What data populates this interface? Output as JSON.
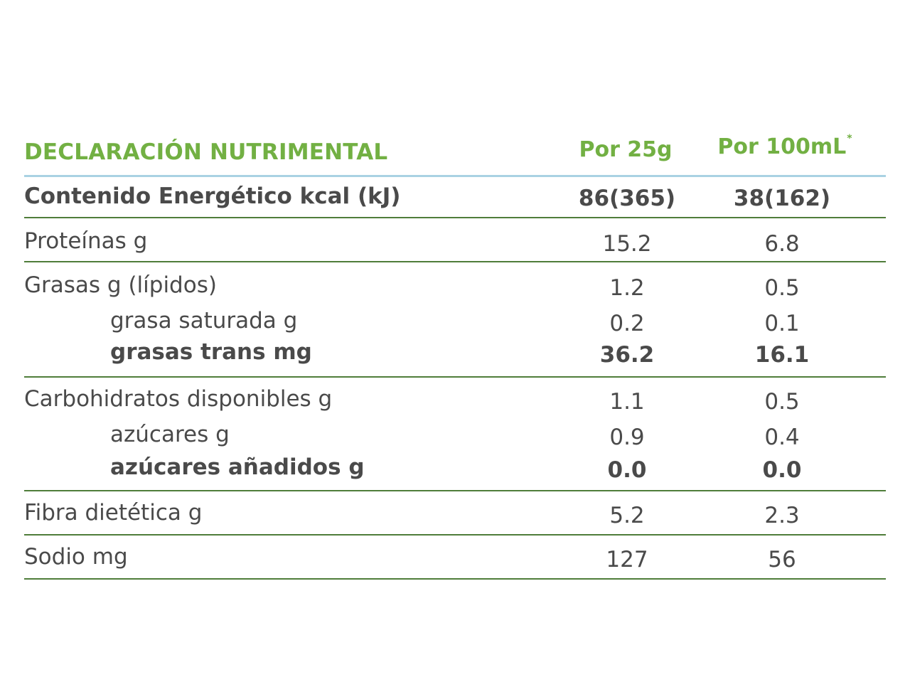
{
  "header": {
    "title": "DECLARACIÓN NUTRIMENTAL",
    "col1": "Por 25g",
    "col2": "Por 100mL",
    "col2_mark": "*"
  },
  "rows": {
    "energy": {
      "label": "Contenido Energético kcal (kJ)",
      "v1": "86(365)",
      "v2": "38(162)"
    },
    "protein": {
      "label": "Proteínas g",
      "v1": "15.2",
      "v2": "6.8"
    },
    "fat": {
      "label": "Grasas g (lípidos)",
      "v1": "1.2",
      "v2": "0.5"
    },
    "sat_fat": {
      "label": "grasa saturada g",
      "v1": "0.2",
      "v2": "0.1"
    },
    "trans_fat": {
      "label": "grasas trans mg",
      "v1": "36.2",
      "v2": "16.1"
    },
    "carbs": {
      "label": "Carbohidratos disponibles g",
      "v1": "1.1",
      "v2": "0.5"
    },
    "sugars": {
      "label": "azúcares g",
      "v1": "0.9",
      "v2": "0.4"
    },
    "added_sugars": {
      "label": "azúcares añadidos g",
      "v1": "0.0",
      "v2": "0.0"
    },
    "fiber": {
      "label": "Fibra dietética g",
      "v1": "5.2",
      "v2": "2.3"
    },
    "sodium": {
      "label": "Sodio mg",
      "v1": "127",
      "v2": "56"
    }
  },
  "colors": {
    "accent_green": "#72b043",
    "rule_green": "#4f7d3a",
    "rule_blue": "#a9d2e3",
    "text": "#4a4a4a"
  }
}
